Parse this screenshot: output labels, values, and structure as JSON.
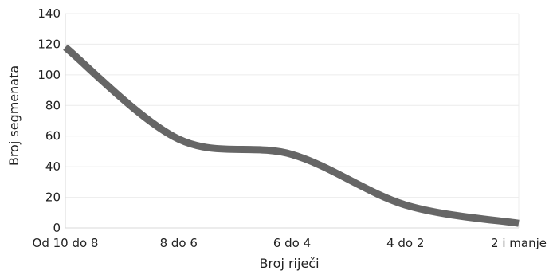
{
  "chart_data": {
    "type": "line",
    "categories": [
      "Od 10 do 8",
      "8 do 6",
      "6 do 4",
      "4 do 2",
      "2 i manje"
    ],
    "series": [
      {
        "values": [
          118,
          58,
          48,
          15,
          3
        ],
        "color": "#666666"
      }
    ],
    "xlabel": "Broj riječi",
    "ylabel": "Broj segmenata",
    "ylim": [
      0,
      140
    ],
    "yticks": [
      0,
      20,
      40,
      60,
      80,
      100,
      120,
      140
    ],
    "grid": true,
    "legend": "none",
    "smooth": true
  }
}
